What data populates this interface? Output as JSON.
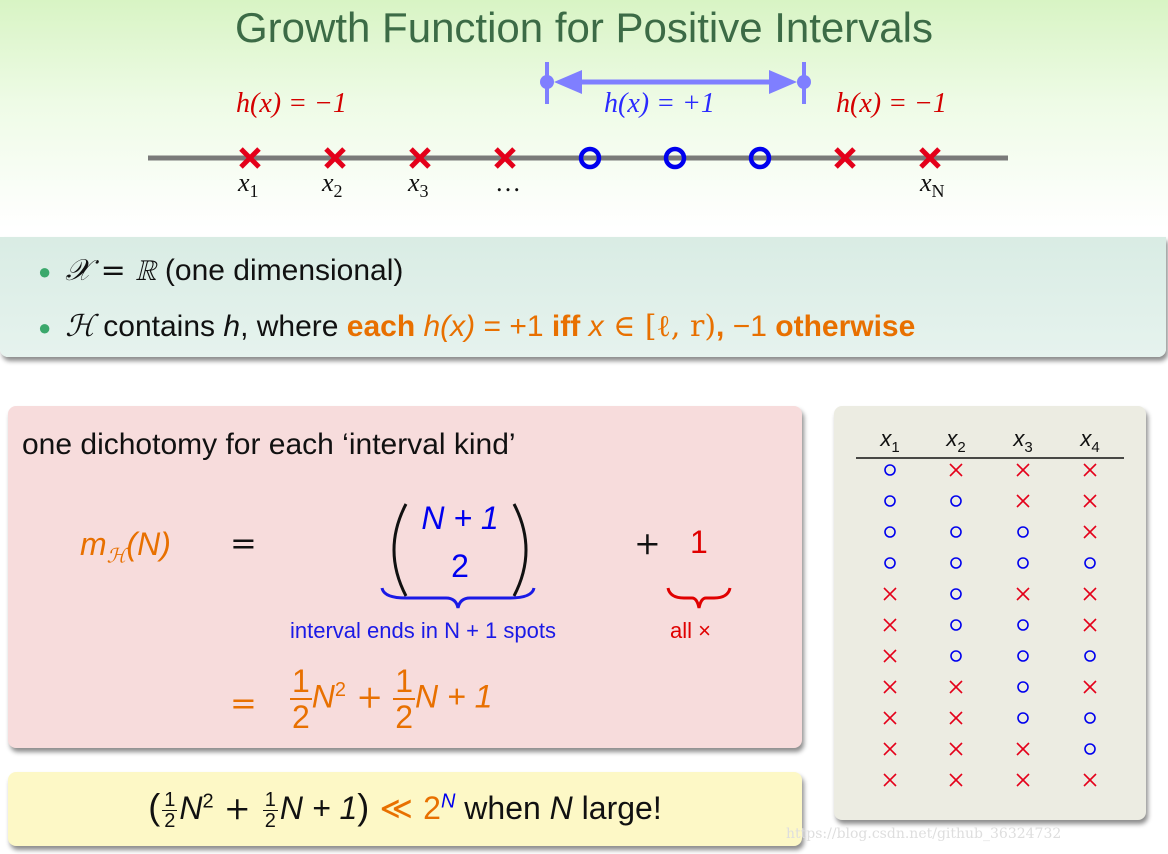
{
  "slide": {
    "title": "Growth Function for Positive Intervals"
  },
  "number_line": {
    "left_label": "h(x) = −1",
    "middle_label": "h(x) = +1",
    "right_label": "h(x) = −1",
    "point_labels": [
      "x",
      "x",
      "x",
      "…",
      "x"
    ],
    "point_subscripts": [
      "1",
      "2",
      "3",
      "",
      "N"
    ],
    "points": [
      "cross",
      "cross",
      "cross",
      "cross",
      "circle",
      "circle",
      "circle",
      "cross",
      "cross"
    ],
    "colors": {
      "cross": "#e4001a",
      "circle": "#0000ee",
      "arrow": "#7f7fff",
      "line": "#7a7a7a"
    }
  },
  "bullets": {
    "item1": {
      "math": "𝒳 = ℝ",
      "text": " (one dimensional)"
    },
    "item2": {
      "math_h": "ℋ",
      "t1": " contains ",
      "h": "h",
      "t2": ", where ",
      "each": "each ",
      "hx": "h(x)",
      "eq": " = +1 ",
      "iff": "iff ",
      "x": "x",
      "in": " ∈ [ℓ, r)",
      "comma": ", ",
      "neg1": "−1 ",
      "otherwise": "otherwise"
    }
  },
  "dichotomy": {
    "heading": "one dichotomy for each ‘interval kind’",
    "lhs": "m",
    "lhs_sub": "ℋ",
    "lhs_arg": "(N)",
    "eq1": "=",
    "binom_top": "N + 1",
    "binom_bottom": "2",
    "plus": "+",
    "one": "1",
    "brace_label_left": "interval ends in N + 1 spots",
    "brace_label_right": "all ×",
    "eq2": "=",
    "result": {
      "f1_num": "1",
      "f1_den": "2",
      "t1": "N",
      "t1_sup": "2",
      "plus1": " + ",
      "f2_num": "1",
      "f2_den": "2",
      "t2": "N + 1"
    }
  },
  "conclusion": {
    "f1_num": "1",
    "f1_den": "2",
    "n_sq": "N",
    "sq": "2",
    "plus": " + ",
    "f2_num": "1",
    "f2_den": "2",
    "n_plus": "N + 1",
    "ll": " ≪ ",
    "two": "2",
    "sup_n": "N",
    "tail": " when ",
    "n": "N",
    "tail2": " large!"
  },
  "table": {
    "headers": [
      "x",
      "x",
      "x",
      "x"
    ],
    "subscripts": [
      "1",
      "2",
      "3",
      "4"
    ],
    "rows": [
      [
        "o",
        "x",
        "x",
        "x"
      ],
      [
        "o",
        "o",
        "x",
        "x"
      ],
      [
        "o",
        "o",
        "o",
        "x"
      ],
      [
        "o",
        "o",
        "o",
        "o"
      ],
      [
        "x",
        "o",
        "x",
        "x"
      ],
      [
        "x",
        "o",
        "o",
        "x"
      ],
      [
        "x",
        "o",
        "o",
        "o"
      ],
      [
        "x",
        "x",
        "o",
        "x"
      ],
      [
        "x",
        "x",
        "o",
        "o"
      ],
      [
        "x",
        "x",
        "x",
        "o"
      ],
      [
        "x",
        "x",
        "x",
        "x"
      ]
    ]
  },
  "watermark": "https://blog.csdn.net/github_36324732"
}
